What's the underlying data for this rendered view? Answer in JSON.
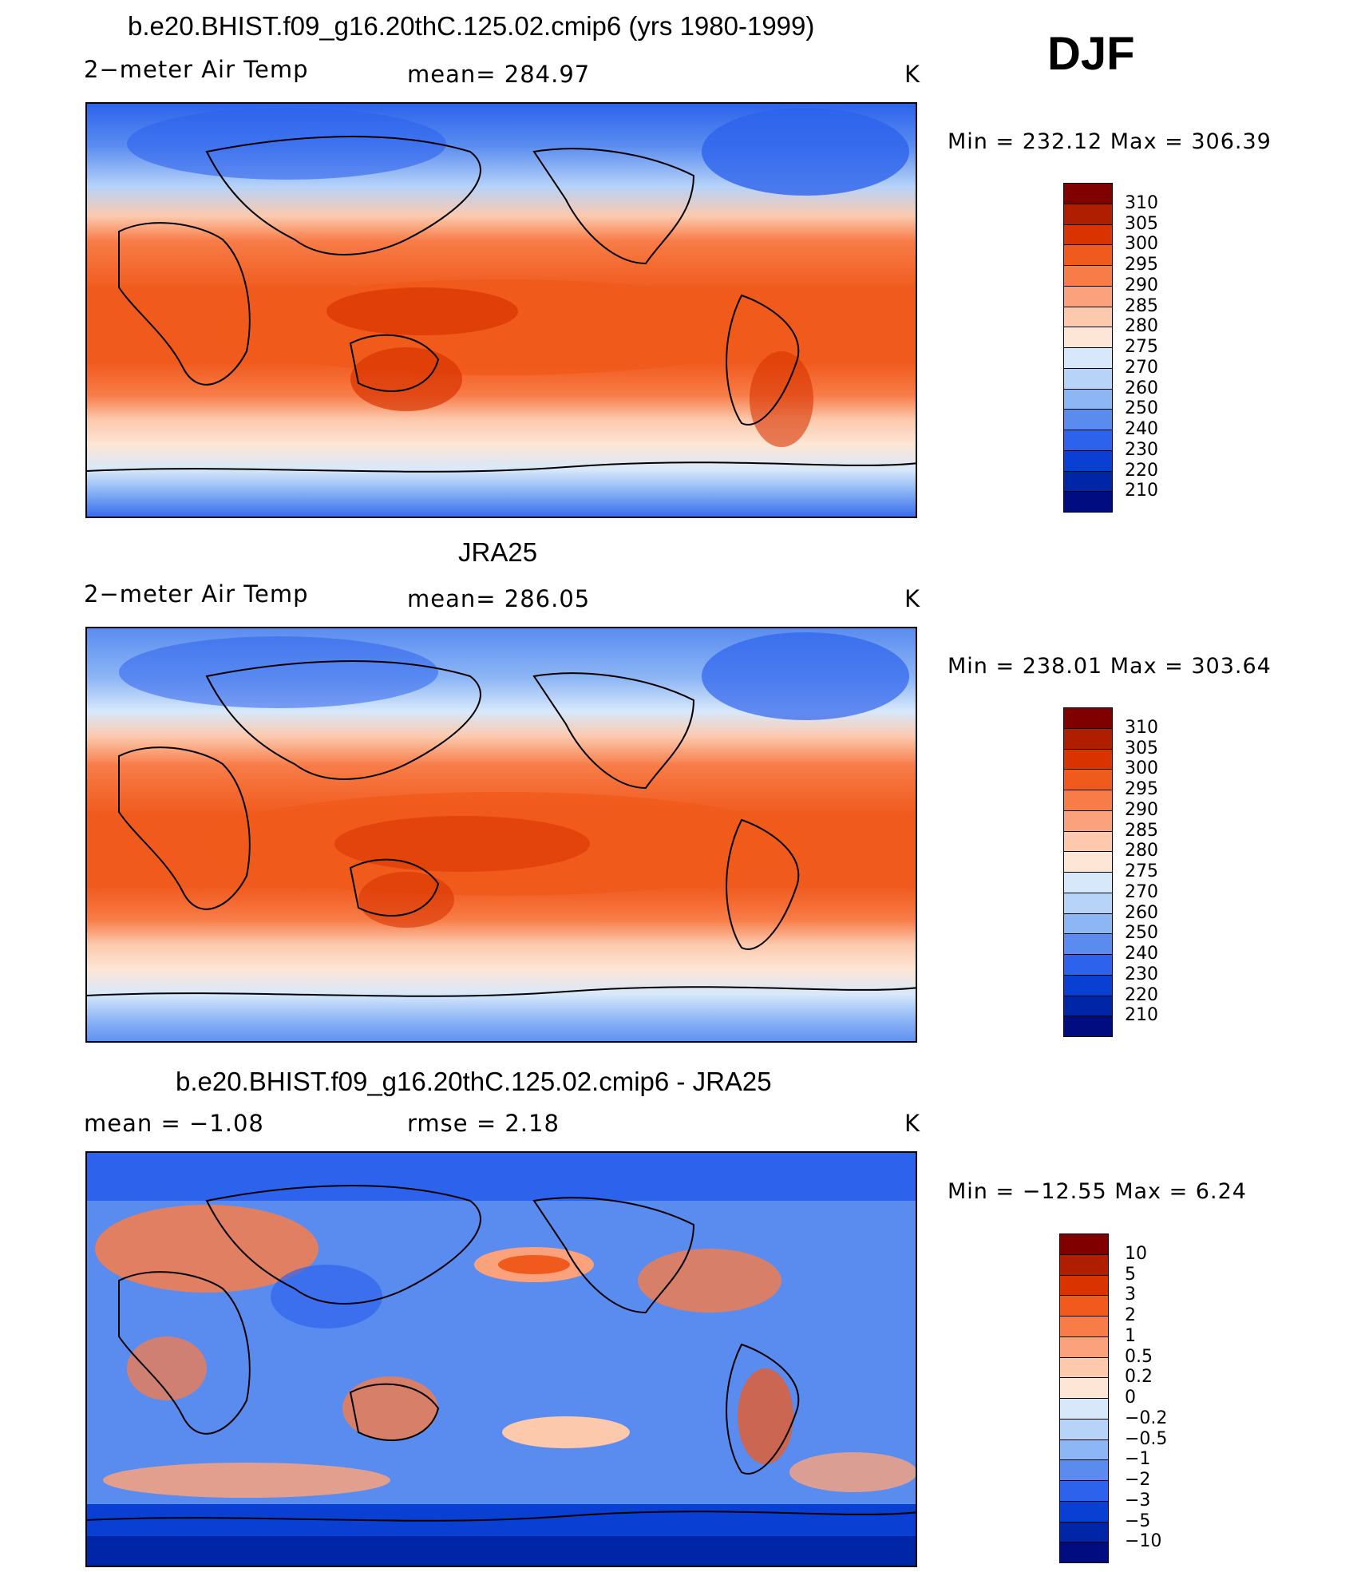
{
  "season": "DJF",
  "panels": [
    {
      "title": "b.e20.BHIST.f09_g16.20thC.125.02.cmip6 (yrs 1980-1999)",
      "left_label": "2−meter Air Temp",
      "center_label": "mean=  284.97",
      "unit": "K",
      "minmax": "Min  =  232.12  Max  =  306.39",
      "map_label": "model-temperature-map"
    },
    {
      "title": "JRA25",
      "left_label": "2−meter Air Temp",
      "center_label": "mean=  286.05",
      "unit": "K",
      "minmax": "Min  =  238.01  Max  =  303.64",
      "map_label": "observation-temperature-map"
    },
    {
      "title": "b.e20.BHIST.f09_g16.20thC.125.02.cmip6 - JRA25",
      "left_label": "mean  =     −1.08",
      "center_label": "rmse  =      2.18",
      "unit": "K",
      "minmax": "Min  =  −12.55  Max  =      6.24",
      "map_label": "difference-map"
    }
  ],
  "colorbars": {
    "temperature": {
      "labels": [
        "310",
        "305",
        "300",
        "295",
        "290",
        "285",
        "280",
        "275",
        "270",
        "260",
        "250",
        "240",
        "230",
        "220",
        "210"
      ],
      "colors": [
        "#800000",
        "#b01e00",
        "#d93300",
        "#f05a1c",
        "#f87c48",
        "#fba27c",
        "#fcc9ad",
        "#fde6d6",
        "#d7e8fb",
        "#b7d3f8",
        "#8db6f5",
        "#5a8cf0",
        "#2d63ec",
        "#0a3fd4",
        "#0026a8",
        "#000c80"
      ]
    },
    "difference": {
      "labels": [
        "10",
        "5",
        "3",
        "2",
        "1",
        "0.5",
        "0.2",
        "0",
        "−0.2",
        "−0.5",
        "−1",
        "−2",
        "−3",
        "−5",
        "−10"
      ],
      "colors": [
        "#800000",
        "#b01e00",
        "#d93300",
        "#f05a1c",
        "#f87c48",
        "#fba27c",
        "#fcc9ad",
        "#fde6d6",
        "#d7e8fb",
        "#b7d3f8",
        "#8db6f5",
        "#5a8cf0",
        "#2d63ec",
        "#0a3fd4",
        "#0026a8",
        "#000c80"
      ]
    }
  }
}
